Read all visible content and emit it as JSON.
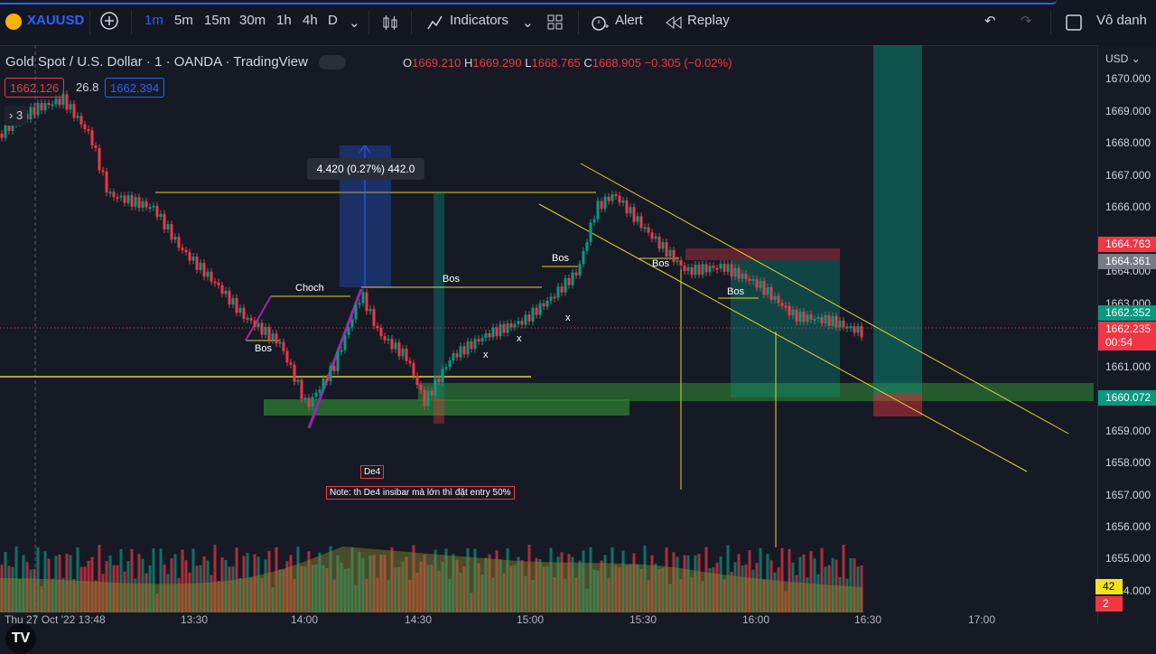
{
  "toolbar": {
    "symbol": "XAUUSD",
    "intervals": [
      "1m",
      "5m",
      "15m",
      "30m",
      "1h",
      "4h",
      "D"
    ],
    "active_interval": "1m",
    "indicators_label": "Indicators",
    "alert_label": "Alert",
    "replay_label": "Replay",
    "layout_name": "Vô danh"
  },
  "legend": {
    "title": "Gold Spot / U.S. Dollar",
    "interval": "1",
    "source": "OANDA",
    "provider": "TradingView",
    "ohlc": {
      "o_label": "O",
      "o": "1669.210",
      "h_label": "H",
      "h": "1669.290",
      "l_label": "L",
      "l": "1668.765",
      "c_label": "C",
      "c": "1668.905",
      "change": "−0.305 (−0.02%)"
    },
    "sell_price": "1662.126",
    "spread": "26.8",
    "buy_price": "1662.394",
    "collapse_count": "3"
  },
  "price_scale": {
    "currency": "USD",
    "ticks": [
      "1670.000",
      "1669.000",
      "1668.000",
      "1667.000",
      "1666.000",
      "1664.000",
      "1663.000",
      "1661.000",
      "1660.000",
      "1659.000",
      "1658.000",
      "1657.000",
      "1656.000",
      "1655.000",
      "1654.000"
    ],
    "labels": [
      {
        "value": "1664.763",
        "color": "#f23645"
      },
      {
        "value": "1664.361",
        "color": "#787b86"
      },
      {
        "value": "1662.352",
        "color": "#089981"
      },
      {
        "value": "1662.235",
        "color": "#f23645"
      },
      {
        "value": "00:54",
        "color": "#f23645"
      },
      {
        "value": "1660.072",
        "color": "#089981"
      }
    ],
    "volume_labels": [
      {
        "value": "42",
        "color": "#f5e31a"
      },
      {
        "value": "2",
        "color": "#f23645"
      }
    ]
  },
  "annotations": {
    "measure": "4.420 (0.27%) 442.0",
    "choch": "Choch",
    "bos": "Bos",
    "x": "x",
    "de4": "De4",
    "note": "Note: th De4 insibar mà lớn thì đặt entry 50%"
  },
  "time_axis": {
    "labels": [
      "Thu 27 Oct '22  13:48",
      "13:30",
      "14:00",
      "14:30",
      "15:00",
      "15:30",
      "16:00",
      "16:30",
      "17:00"
    ]
  },
  "colors": {
    "background": "#161a25",
    "up": "#089981",
    "down": "#f23645",
    "accent": "#2962ff",
    "trendline": "#e2d22a"
  }
}
